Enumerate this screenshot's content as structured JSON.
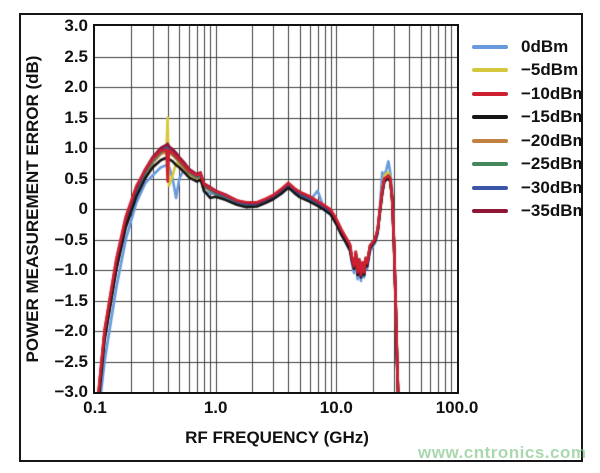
{
  "page": {
    "watermark": "www.cntronics.com",
    "frame_color": "#161616",
    "background": "#ffffff"
  },
  "chart_data": {
    "type": "line",
    "title": "",
    "xlabel": "RF FREQUENCY (GHz)",
    "ylabel": "POWER MEASUREMENT ERROR (dB)",
    "x_scale": "log",
    "xlim": [
      0.1,
      100
    ],
    "ylim": [
      -3,
      3
    ],
    "grid": "major+minor",
    "grid_color": "#3d3d3d",
    "legend_position": "right",
    "x_tick_labels": [
      "0.1",
      "1.0",
      "10.0",
      "100.0"
    ],
    "x_tick_values": [
      0.1,
      1,
      10,
      100
    ],
    "y_tick_labels": [
      "3.0",
      "2.5",
      "2.0",
      "1.5",
      "1.0",
      "0.5",
      "0",
      "−0.5",
      "−1.0",
      "−1.5",
      "−2.0",
      "−2.5",
      "−3.0"
    ],
    "y_tick_values": [
      3,
      2.5,
      2,
      1.5,
      1,
      0.5,
      0,
      -0.5,
      -1,
      -1.5,
      -2,
      -2.5,
      -3
    ],
    "x": [
      0.1,
      0.12,
      0.15,
      0.18,
      0.22,
      0.26,
      0.3,
      0.35,
      0.39,
      0.4,
      0.41,
      0.44,
      0.47,
      0.5,
      0.55,
      0.6,
      0.7,
      0.75,
      0.8,
      0.9,
      1,
      1.2,
      1.5,
      1.8,
      2.2,
      2.6,
      3,
      3.5,
      4,
      4.5,
      5,
      6,
      7,
      8,
      9,
      10,
      11,
      12,
      13,
      13.5,
      14,
      14.5,
      15,
      15.5,
      16,
      16.5,
      17,
      17.5,
      18,
      19,
      20,
      21,
      22,
      23,
      24,
      25,
      26,
      27,
      28,
      29,
      30,
      31,
      32,
      33
    ],
    "draw_order": [
      0,
      1,
      4,
      5,
      6,
      3,
      7,
      2
    ],
    "series": [
      {
        "name": "0dBm",
        "color": "#689ade",
        "values": [
          -3.9,
          -2.5,
          -1.3,
          -0.5,
          0.1,
          0.42,
          0.55,
          0.68,
          0.72,
          0.73,
          0.7,
          0.5,
          0.18,
          0.5,
          0.66,
          0.58,
          0.5,
          0.54,
          0.28,
          0.26,
          0.24,
          0.17,
          0.08,
          0.04,
          0.05,
          0.11,
          0.17,
          0.26,
          0.38,
          0.28,
          0.2,
          0.13,
          0.3,
          -0.02,
          -0.1,
          -0.24,
          -0.42,
          -0.55,
          -0.7,
          -0.9,
          -1.05,
          -0.8,
          -1.15,
          -0.92,
          -1.18,
          -0.95,
          -1.12,
          -0.9,
          -0.98,
          -0.7,
          -0.62,
          -0.55,
          -0.4,
          0.05,
          0.6,
          0.55,
          0.65,
          0.78,
          0.6,
          0.3,
          -0.45,
          -1.45,
          -2.55,
          -3.4
        ]
      },
      {
        "name": "−5dBm",
        "color": "#d5c83e",
        "values": [
          -3.62,
          -2.02,
          -0.88,
          -0.2,
          0.3,
          0.58,
          0.78,
          0.9,
          0.93,
          1.5,
          0.38,
          0.55,
          0.75,
          0.72,
          0.65,
          0.57,
          0.5,
          0.53,
          0.36,
          0.31,
          0.26,
          0.2,
          0.11,
          0.07,
          0.08,
          0.14,
          0.2,
          0.3,
          0.4,
          0.31,
          0.24,
          0.17,
          0.09,
          0.02,
          -0.05,
          -0.2,
          -0.37,
          -0.5,
          -0.62,
          -0.83,
          -0.96,
          -0.73,
          -1.06,
          -0.86,
          -1.1,
          -0.9,
          -1.05,
          -0.83,
          -0.9,
          -0.62,
          -0.56,
          -0.5,
          -0.35,
          0,
          0.32,
          0.55,
          0.58,
          0.6,
          0.52,
          0.22,
          -0.5,
          -1.5,
          -2.6,
          -3.4
        ]
      },
      {
        "name": "−10dBm",
        "color": "#ce2030",
        "values": [
          -3.58,
          -1.98,
          -0.82,
          -0.12,
          0.38,
          0.63,
          0.82,
          0.95,
          0.98,
          0.45,
          0.96,
          0.92,
          0.86,
          0.8,
          0.71,
          0.62,
          0.55,
          0.58,
          0.4,
          0.34,
          0.29,
          0.23,
          0.14,
          0.11,
          0.11,
          0.17,
          0.23,
          0.33,
          0.43,
          0.34,
          0.28,
          0.21,
          0.13,
          0.06,
          -0.01,
          -0.16,
          -0.33,
          -0.46,
          -0.58,
          -0.8,
          -0.93,
          -0.7,
          -1.03,
          -0.83,
          -1.07,
          -0.87,
          -1.03,
          -0.8,
          -0.88,
          -0.6,
          -0.54,
          -0.48,
          -0.33,
          0.01,
          0.31,
          0.5,
          0.52,
          0.54,
          0.49,
          0.19,
          -0.48,
          -1.48,
          -2.56,
          -3.4
        ]
      },
      {
        "name": "−15dBm",
        "color": "#151515",
        "values": [
          -3.75,
          -2.15,
          -1,
          -0.3,
          0.2,
          0.5,
          0.68,
          0.8,
          0.84,
          0.86,
          0.82,
          0.78,
          0.72,
          0.68,
          0.6,
          0.52,
          0.45,
          0.48,
          0.3,
          0.18,
          0.2,
          0.15,
          0.07,
          0.03,
          0.04,
          0.1,
          0.16,
          0.25,
          0.35,
          0.26,
          0.19,
          0.12,
          0.05,
          -0.02,
          -0.09,
          -0.25,
          -0.42,
          -0.55,
          -0.68,
          -0.86,
          -0.98,
          -0.76,
          -1.08,
          -0.88,
          -1.12,
          -0.92,
          -1.08,
          -0.86,
          -0.94,
          -0.65,
          -0.58,
          -0.52,
          -0.38,
          -0.05,
          0.25,
          0.45,
          0.48,
          0.5,
          0.45,
          0.15,
          -0.56,
          -1.56,
          -2.66,
          -3.4
        ]
      },
      {
        "name": "−20dBm",
        "color": "#c28142",
        "values": [
          -3.72,
          -2.12,
          -0.98,
          -0.25,
          0.25,
          0.55,
          0.75,
          0.9,
          0.94,
          0.96,
          0.92,
          0.88,
          0.82,
          0.76,
          0.67,
          0.58,
          0.5,
          0.53,
          0.35,
          0.3,
          0.24,
          0.18,
          0.09,
          0.05,
          0.06,
          0.12,
          0.18,
          0.27,
          0.37,
          0.28,
          0.21,
          0.14,
          0.07,
          0,
          -0.07,
          -0.23,
          -0.41,
          -0.53,
          -0.66,
          -0.84,
          -0.97,
          -0.74,
          -1.06,
          -0.86,
          -1.1,
          -0.9,
          -1.06,
          -0.84,
          -0.92,
          -0.63,
          -0.57,
          -0.5,
          -0.36,
          -0.04,
          0.26,
          0.46,
          0.49,
          0.51,
          0.46,
          0.16,
          -0.55,
          -1.55,
          -2.65,
          -3.4
        ]
      },
      {
        "name": "−25dBm",
        "color": "#44885c",
        "values": [
          -3.7,
          -2.1,
          -0.95,
          -0.22,
          0.28,
          0.58,
          0.78,
          0.93,
          0.97,
          0.99,
          0.95,
          0.9,
          0.84,
          0.78,
          0.69,
          0.6,
          0.52,
          0.55,
          0.37,
          0.31,
          0.25,
          0.19,
          0.1,
          0.06,
          0.07,
          0.13,
          0.19,
          0.28,
          0.38,
          0.29,
          0.22,
          0.15,
          0.08,
          0.01,
          -0.06,
          -0.22,
          -0.4,
          -0.52,
          -0.65,
          -0.8,
          -0.93,
          -0.7,
          -1.02,
          -0.82,
          -1.08,
          -0.88,
          -1.02,
          -0.8,
          -0.88,
          -0.6,
          -0.54,
          -0.48,
          -0.33,
          -0.02,
          0.28,
          0.48,
          0.5,
          0.53,
          0.48,
          0.18,
          -0.52,
          -1.5,
          -2.58,
          -3.4
        ]
      },
      {
        "name": "−30dBm",
        "color": "#3c55a5",
        "values": [
          -3.65,
          -2.05,
          -0.9,
          -0.18,
          0.32,
          0.62,
          0.82,
          0.97,
          1.01,
          1.03,
          0.99,
          0.94,
          0.88,
          0.81,
          0.72,
          0.63,
          0.54,
          0.57,
          0.39,
          0.33,
          0.27,
          0.21,
          0.12,
          0.08,
          0.08,
          0.14,
          0.2,
          0.29,
          0.4,
          0.3,
          0.24,
          0.17,
          0.1,
          0.02,
          -0.05,
          -0.2,
          -0.38,
          -0.5,
          -0.63,
          -0.85,
          -0.9,
          -0.75,
          -1.08,
          -0.88,
          -1.12,
          -0.93,
          -1.08,
          -0.85,
          -0.93,
          -0.65,
          -0.58,
          -0.52,
          -0.38,
          -0.03,
          0.27,
          0.47,
          0.5,
          0.52,
          0.47,
          0.17,
          -0.53,
          -1.52,
          -2.62,
          -3.4
        ]
      },
      {
        "name": "−35dBm",
        "color": "#8f1535",
        "values": [
          -3.6,
          -2,
          -0.85,
          -0.15,
          0.35,
          0.65,
          0.85,
          1,
          1.05,
          1.07,
          1.03,
          0.98,
          0.92,
          0.85,
          0.76,
          0.66,
          0.57,
          0.6,
          0.42,
          0.36,
          0.3,
          0.24,
          0.14,
          0.1,
          0.1,
          0.16,
          0.22,
          0.32,
          0.42,
          0.33,
          0.27,
          0.2,
          0.12,
          0.05,
          -0.02,
          -0.18,
          -0.35,
          -0.48,
          -0.6,
          -0.82,
          -0.95,
          -0.72,
          -1.05,
          -0.85,
          -1.1,
          -0.9,
          -1.05,
          -0.82,
          -0.9,
          -0.62,
          -0.56,
          -0.5,
          -0.35,
          0,
          0.3,
          0.5,
          0.52,
          0.55,
          0.5,
          0.2,
          -0.5,
          -1.5,
          -2.6,
          -3.4
        ]
      }
    ]
  }
}
